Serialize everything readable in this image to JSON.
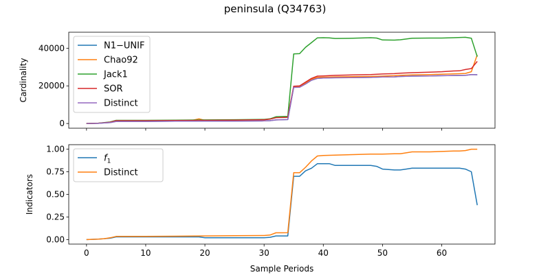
{
  "figure": {
    "title": "peninsula (Q34763)",
    "xlabel": "Sample Periods"
  },
  "chart_data": [
    {
      "type": "line",
      "title": "",
      "xlabel": "",
      "ylabel": "Cardinality",
      "xlim": [
        -3,
        69
      ],
      "ylim": [
        -2500,
        48500
      ],
      "xticks": [
        0,
        10,
        20,
        30,
        40,
        50,
        60
      ],
      "yticks": [
        0,
        20000,
        40000
      ],
      "ytick_labels": [
        "0",
        "20000",
        "40000"
      ],
      "legend": "top-left",
      "series": [
        {
          "name": "N1−UNIF",
          "color": "#1f77b4",
          "x": [
            0,
            2,
            3,
            4,
            5,
            10,
            15,
            20,
            25,
            30,
            31,
            32,
            33,
            34,
            35,
            36,
            37,
            38,
            39,
            40,
            42,
            45,
            48,
            50,
            52,
            53,
            55,
            58,
            60,
            62,
            64,
            65,
            66
          ],
          "y": [
            0,
            100,
            300,
            500,
            1100,
            1100,
            1200,
            1300,
            1300,
            1400,
            1500,
            1900,
            2000,
            2100,
            19200,
            19300,
            21000,
            23000,
            24000,
            24200,
            24300,
            24400,
            24500,
            24700,
            24800,
            25000,
            25200,
            25300,
            25400,
            25500,
            25600,
            26000,
            25900
          ]
        },
        {
          "name": "Chao92",
          "color": "#ff7f0e",
          "x": [
            0,
            2,
            3,
            4,
            5,
            10,
            15,
            18,
            19,
            20,
            25,
            30,
            31,
            32,
            33,
            34,
            35,
            36,
            37,
            38,
            39,
            40,
            42,
            45,
            48,
            50,
            52,
            53,
            55,
            58,
            60,
            62,
            64,
            65,
            66
          ],
          "y": [
            0,
            200,
            400,
            700,
            1500,
            1500,
            1600,
            1800,
            2500,
            1700,
            1800,
            2000,
            2400,
            3300,
            3400,
            3500,
            19600,
            19700,
            21500,
            23500,
            24500,
            24600,
            24800,
            24900,
            25000,
            25200,
            25400,
            25600,
            25800,
            26000,
            26200,
            26400,
            26600,
            27500,
            36500
          ]
        },
        {
          "name": "Jack1",
          "color": "#2ca02c",
          "x": [
            0,
            2,
            3,
            4,
            5,
            10,
            15,
            20,
            25,
            30,
            31,
            32,
            33,
            34,
            35,
            36,
            37,
            38,
            39,
            40,
            41,
            42,
            45,
            48,
            49,
            50,
            52,
            53,
            55,
            58,
            60,
            62,
            64,
            65,
            66
          ],
          "y": [
            0,
            200,
            500,
            800,
            1700,
            1700,
            1800,
            1900,
            2000,
            2200,
            2500,
            3600,
            3700,
            3800,
            37000,
            37100,
            40500,
            43000,
            45500,
            45600,
            45500,
            45200,
            45300,
            45600,
            45400,
            44400,
            44300,
            44500,
            45300,
            45400,
            45400,
            45600,
            45800,
            45300,
            35500
          ]
        },
        {
          "name": "SOR",
          "color": "#d62728",
          "x": [
            0,
            2,
            3,
            4,
            5,
            10,
            15,
            20,
            25,
            30,
            31,
            32,
            33,
            34,
            35,
            36,
            37,
            38,
            39,
            40,
            42,
            45,
            48,
            50,
            52,
            53,
            55,
            58,
            60,
            62,
            63,
            64,
            65,
            66
          ],
          "y": [
            0,
            150,
            400,
            700,
            1500,
            1500,
            1600,
            1700,
            1800,
            2000,
            2300,
            3100,
            3200,
            3300,
            19800,
            20000,
            22000,
            24000,
            25200,
            25300,
            25600,
            25800,
            26000,
            26300,
            26500,
            26700,
            27000,
            27300,
            27500,
            27900,
            28000,
            28700,
            29200,
            33000
          ]
        },
        {
          "name": "Distinct",
          "color": "#9467bd",
          "x": [
            0,
            2,
            3,
            4,
            5,
            10,
            15,
            20,
            25,
            30,
            31,
            32,
            33,
            34,
            35,
            36,
            37,
            38,
            39,
            40,
            42,
            45,
            48,
            50,
            52,
            53,
            55,
            58,
            60,
            62,
            64,
            65,
            66
          ],
          "y": [
            0,
            100,
            300,
            500,
            1100,
            1100,
            1200,
            1300,
            1300,
            1400,
            1500,
            1900,
            2000,
            2100,
            19200,
            19300,
            21000,
            23000,
            24000,
            24200,
            24300,
            24400,
            24500,
            24700,
            24800,
            25000,
            25200,
            25300,
            25400,
            25500,
            25600,
            26000,
            25900
          ]
        }
      ]
    },
    {
      "type": "line",
      "title": "",
      "xlabel": "Sample Periods",
      "ylabel": "Indicators",
      "xlim": [
        -3,
        69
      ],
      "ylim": [
        -0.05,
        1.05
      ],
      "xticks": [
        0,
        10,
        20,
        30,
        40,
        50,
        60
      ],
      "yticks": [
        0,
        0.25,
        0.5,
        0.75,
        1.0
      ],
      "ytick_labels": [
        "0.00",
        "0.25",
        "0.50",
        "0.75",
        "1.00"
      ],
      "legend": "top-left",
      "series": [
        {
          "name": "f1",
          "color": "#1f77b4",
          "x": [
            0,
            2,
            3,
            4,
            5,
            10,
            15,
            19,
            20,
            25,
            30,
            31,
            32,
            33,
            34,
            35,
            36,
            37,
            38,
            39,
            40,
            41,
            42,
            45,
            48,
            49,
            50,
            52,
            53,
            54,
            55,
            58,
            60,
            62,
            63,
            64,
            65,
            66
          ],
          "y": [
            0.0,
            0.005,
            0.01,
            0.015,
            0.03,
            0.03,
            0.03,
            0.03,
            0.02,
            0.02,
            0.02,
            0.025,
            0.04,
            0.04,
            0.04,
            0.7,
            0.7,
            0.76,
            0.79,
            0.84,
            0.84,
            0.84,
            0.82,
            0.82,
            0.82,
            0.81,
            0.78,
            0.77,
            0.77,
            0.78,
            0.79,
            0.79,
            0.79,
            0.79,
            0.79,
            0.78,
            0.75,
            0.38
          ]
        },
        {
          "name": "Distinct",
          "color": "#ff7f0e",
          "x": [
            0,
            2,
            3,
            4,
            5,
            10,
            15,
            20,
            25,
            30,
            31,
            32,
            33,
            34,
            35,
            36,
            37,
            38,
            39,
            40,
            42,
            45,
            48,
            50,
            52,
            53,
            55,
            58,
            60,
            62,
            63,
            64,
            65,
            66
          ],
          "y": [
            0.0,
            0.005,
            0.01,
            0.02,
            0.035,
            0.035,
            0.037,
            0.04,
            0.043,
            0.045,
            0.05,
            0.075,
            0.075,
            0.076,
            0.74,
            0.74,
            0.8,
            0.87,
            0.925,
            0.93,
            0.935,
            0.94,
            0.945,
            0.945,
            0.95,
            0.95,
            0.97,
            0.97,
            0.975,
            0.98,
            0.98,
            0.985,
            1.0,
            1.0
          ]
        }
      ]
    }
  ]
}
